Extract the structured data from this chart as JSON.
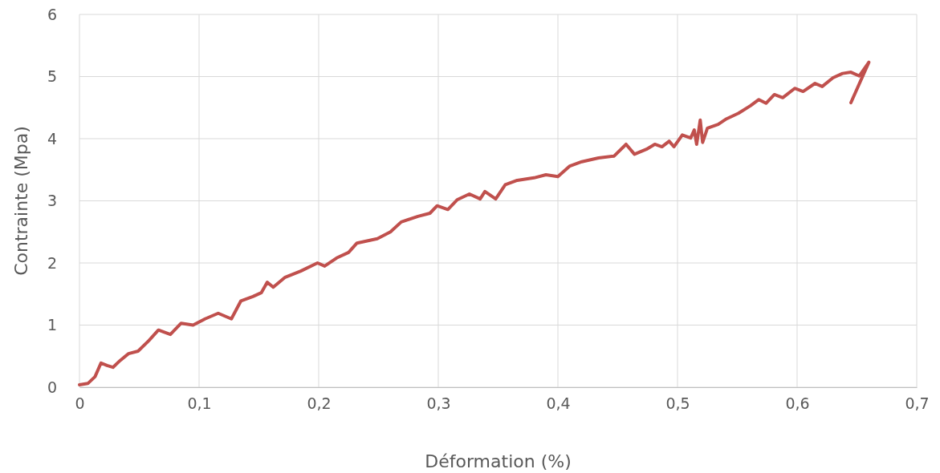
{
  "chart_data": {
    "type": "line",
    "xlabel": "Déformation (%)",
    "ylabel": "Contrainte (Mpa)",
    "xlim": [
      0,
      0.7
    ],
    "xticks": [
      {
        "value": 0,
        "label": "0"
      },
      {
        "value": 0.1,
        "label": "0,1"
      },
      {
        "value": 0.2,
        "label": "0,2"
      },
      {
        "value": 0.3,
        "label": "0,3"
      },
      {
        "value": 0.4,
        "label": "0,4"
      },
      {
        "value": 0.5,
        "label": "0,5"
      },
      {
        "value": 0.6,
        "label": "0,6"
      },
      {
        "value": 0.7,
        "label": "0,7"
      }
    ],
    "ylim": [
      0,
      6
    ],
    "yticks": [
      0,
      1,
      2,
      3,
      4,
      5,
      6
    ],
    "grid": true,
    "marker": "none",
    "line_style": "solid",
    "series": [
      {
        "color": "#c0504d",
        "x": [
          0,
          0.007,
          0.013,
          0.018,
          0.023,
          0.028,
          0.034,
          0.041,
          0.049,
          0.058,
          0.066,
          0.076,
          0.085,
          0.095,
          0.105,
          0.116,
          0.127,
          0.135,
          0.145,
          0.152,
          0.157,
          0.162,
          0.172,
          0.185,
          0.199,
          0.205,
          0.215,
          0.225,
          0.232,
          0.249,
          0.26,
          0.269,
          0.283,
          0.293,
          0.299,
          0.308,
          0.316,
          0.326,
          0.335,
          0.339,
          0.348,
          0.356,
          0.366,
          0.38,
          0.39,
          0.4,
          0.41,
          0.42,
          0.434,
          0.447,
          0.457,
          0.464,
          0.474,
          0.481,
          0.487,
          0.493,
          0.497,
          0.504,
          0.511,
          0.514,
          0.516,
          0.519,
          0.521,
          0.525,
          0.534,
          0.541,
          0.551,
          0.561,
          0.568,
          0.574,
          0.581,
          0.588,
          0.598,
          0.605,
          0.615,
          0.621,
          0.63,
          0.638,
          0.645,
          0.652,
          0.66,
          0.645
        ],
        "values": [
          0.04,
          0.06,
          0.17,
          0.39,
          0.35,
          0.32,
          0.43,
          0.54,
          0.58,
          0.75,
          0.92,
          0.85,
          1.03,
          1.0,
          1.1,
          1.19,
          1.1,
          1.39,
          1.46,
          1.52,
          1.69,
          1.61,
          1.77,
          1.87,
          2.0,
          1.95,
          2.08,
          2.17,
          2.32,
          2.39,
          2.5,
          2.66,
          2.75,
          2.8,
          2.92,
          2.86,
          3.02,
          3.11,
          3.03,
          3.15,
          3.03,
          3.26,
          3.33,
          3.37,
          3.42,
          3.39,
          3.56,
          3.63,
          3.69,
          3.72,
          3.91,
          3.75,
          3.83,
          3.91,
          3.87,
          3.96,
          3.87,
          4.06,
          4.01,
          4.14,
          3.91,
          4.3,
          3.94,
          4.17,
          4.23,
          4.32,
          4.41,
          4.53,
          4.63,
          4.57,
          4.71,
          4.66,
          4.81,
          4.76,
          4.89,
          4.84,
          4.98,
          5.05,
          5.07,
          5.01,
          5.23,
          4.58
        ]
      }
    ]
  }
}
